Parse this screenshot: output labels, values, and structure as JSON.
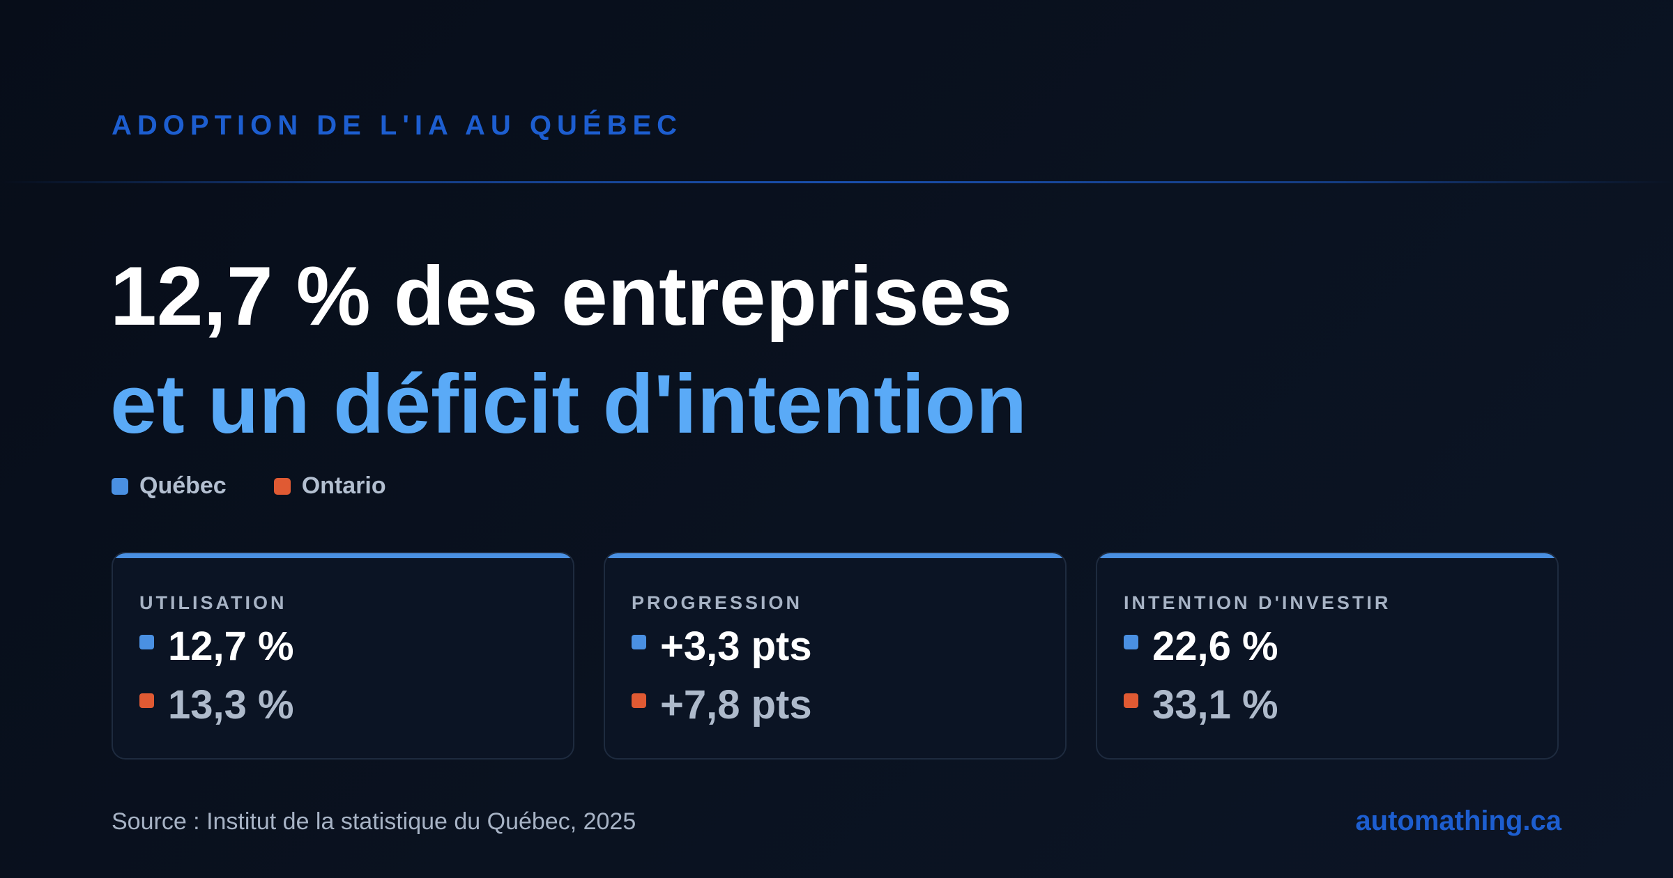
{
  "eyebrow": "ADOPTION DE L'IA AU QUÉBEC",
  "headline": {
    "line1": "12,7 % des entreprises",
    "line2": "et un déficit d'intention"
  },
  "legend": [
    {
      "label": "Québec",
      "color": "#4a90e2"
    },
    {
      "label": "Ontario",
      "color": "#e05a33"
    }
  ],
  "cards": [
    {
      "label": "UTILISATION",
      "quebec": "12,7 %",
      "ontario": "13,3 %"
    },
    {
      "label": "PROGRESSION",
      "quebec": "+3,3 pts",
      "ontario": "+7,8 pts"
    },
    {
      "label": "INTENTION D'INVESTIR",
      "quebec": "22,6 %",
      "ontario": "33,1 %"
    }
  ],
  "footer": {
    "source": "Source : Institut de la statistique du Québec, 2025",
    "brand": "automathing.ca"
  },
  "colors": {
    "accent": "#1d5ed0",
    "quebec": "#4a90e2",
    "ontario": "#e05a33",
    "headline_highlight": "#5aaaf7"
  }
}
